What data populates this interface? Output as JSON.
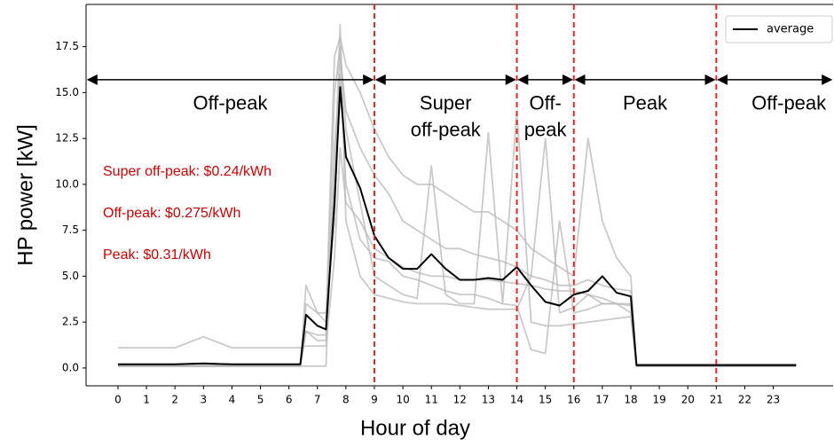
{
  "chart_data": {
    "type": "line",
    "x_label": "Hour of day",
    "y_label": "HP power [kW]",
    "xlim": [
      -1.12,
      25.1
    ],
    "ylim": [
      -0.97,
      19.8
    ],
    "xticks": [
      0,
      1,
      2,
      3,
      4,
      5,
      6,
      7,
      8,
      9,
      10,
      11,
      12,
      13,
      14,
      15,
      16,
      17,
      18,
      19,
      20,
      21,
      22,
      23
    ],
    "yticks": [
      {
        "value": 0,
        "label": "0.0"
      },
      2.5,
      {
        "value": 5,
        "label": "5.0"
      },
      7.5,
      {
        "value": 10,
        "label": "10.0"
      },
      12.5,
      {
        "value": 15,
        "label": "15.0"
      },
      17.5
    ],
    "x": [
      0,
      1,
      2,
      3,
      4,
      5,
      6,
      6.4,
      6.6,
      7,
      7.3,
      7.6,
      7.8,
      8,
      8.5,
      9,
      9.5,
      10,
      10.5,
      11,
      11.5,
      12,
      12.5,
      13,
      13.5,
      14,
      14.5,
      15,
      15.5,
      16,
      16.5,
      17,
      17.5,
      18,
      18.2,
      19,
      20,
      21,
      22,
      23,
      23.8
    ],
    "series": [
      {
        "color": "#b8b8b8",
        "values": [
          1.1,
          1.1,
          1.1,
          1.7,
          1.1,
          1.1,
          1.1,
          1.1,
          1.2,
          1.2,
          1.2,
          6,
          12,
          9,
          8,
          6.5,
          6,
          5.5,
          5.2,
          5,
          5,
          4.8,
          4.8,
          4.8,
          4.7,
          4.6,
          4.5,
          4.3,
          4.2,
          4.2,
          4.0,
          3.5,
          3.5,
          3.4,
          0.2,
          0.2,
          0.2,
          0.2,
          0.2,
          0.2,
          0.2
        ]
      },
      {
        "color": "#b8b8b8",
        "values": [
          0.1,
          0.1,
          0.1,
          0.1,
          0.1,
          0.1,
          0.1,
          0.1,
          4.5,
          3,
          2.5,
          17,
          18,
          16.5,
          15,
          13,
          11.5,
          10.5,
          10,
          10,
          9.5,
          9,
          8.5,
          8.5,
          8,
          7.5,
          6.5,
          6,
          5.5,
          5,
          12.5,
          8,
          6,
          5,
          0.1,
          0.1,
          0.1,
          0.1,
          0.1,
          0.1,
          0.1
        ]
      },
      {
        "color": "#b8b8b8",
        "values": [
          0.1,
          0.1,
          0.1,
          0.1,
          0.1,
          0.1,
          0.1,
          0.1,
          2,
          1.5,
          1.5,
          15,
          17.5,
          13,
          9,
          5,
          4.5,
          4,
          3.8,
          11,
          4,
          3.5,
          3.5,
          12.8,
          3.5,
          14,
          2.5,
          2.3,
          2.3,
          2.4,
          2.5,
          2.6,
          2.7,
          2.8,
          0.1,
          0.1,
          0.1,
          0.1,
          0.1,
          0.1,
          0.1
        ]
      },
      {
        "color": "#b8b8b8",
        "values": [
          0.1,
          0.1,
          0.1,
          0.1,
          0.1,
          0.1,
          0.1,
          0.1,
          0.1,
          0.1,
          0.1,
          12,
          16,
          10,
          7,
          6,
          5.8,
          5,
          4.8,
          4.5,
          4.2,
          4,
          4,
          3.8,
          3.5,
          3.4,
          1,
          0.8,
          8,
          3,
          3.2,
          3.5,
          3.5,
          3,
          0.1,
          0.1,
          0.1,
          0.1,
          0.1,
          0.1,
          0.1
        ]
      },
      {
        "color": "#b8b8b8",
        "values": [
          0.2,
          0.2,
          0.2,
          0.2,
          0.2,
          0.2,
          0.2,
          0.2,
          3.5,
          3,
          3,
          8,
          17,
          14,
          12,
          10.5,
          9.5,
          8,
          7.5,
          7,
          6.5,
          6.5,
          6.2,
          6,
          5.8,
          5.5,
          5,
          4.8,
          4.5,
          4.5,
          4.8,
          4.5,
          4.3,
          4.2,
          0.2,
          0.2,
          0.2,
          0.2,
          0.2,
          0.2,
          0.2
        ]
      },
      {
        "color": "#b8b8b8",
        "values": [
          0.1,
          0.1,
          0.1,
          0.1,
          0.1,
          0.1,
          0.1,
          0.1,
          2,
          1.8,
          1.8,
          10,
          18.7,
          8,
          5,
          4,
          3.8,
          3.6,
          3.5,
          3.5,
          3.5,
          3.4,
          3.3,
          3.2,
          3.2,
          3.2,
          5,
          12.5,
          3,
          3.3,
          4,
          3.8,
          3.5,
          3.5,
          0.1,
          0.1,
          0.1,
          0.1,
          0.1,
          0.1,
          0.1
        ]
      },
      {
        "name": "average",
        "color": "#000000",
        "values": [
          0.2,
          0.2,
          0.2,
          0.25,
          0.2,
          0.2,
          0.2,
          0.2,
          2.9,
          2.3,
          2.1,
          9,
          15.3,
          11.5,
          9.8,
          7.2,
          6,
          5.4,
          5.4,
          6.2,
          5.4,
          4.8,
          4.8,
          4.9,
          4.8,
          5.5,
          4.5,
          3.6,
          3.4,
          4.0,
          4.2,
          5.0,
          4.1,
          3.9,
          0.15,
          0.15,
          0.15,
          0.15,
          0.15,
          0.15,
          0.15
        ]
      }
    ],
    "boundaries": [
      9,
      14,
      16,
      21
    ],
    "boundary_color": "#e8261e",
    "arrow_y": 15.7,
    "periods": [
      [
        "Off-peak"
      ],
      [
        "Super",
        "off-peak"
      ],
      [
        "Off-",
        "peak"
      ],
      [
        "Peak"
      ],
      [
        "Off-peak"
      ]
    ],
    "prices": [
      "Super off-peak: $0.24/kWh",
      "Off-peak: $0.275/kWh",
      "Peak: $0.31/kWh"
    ],
    "price_color": "#cc0000",
    "legend": "upper right"
  }
}
